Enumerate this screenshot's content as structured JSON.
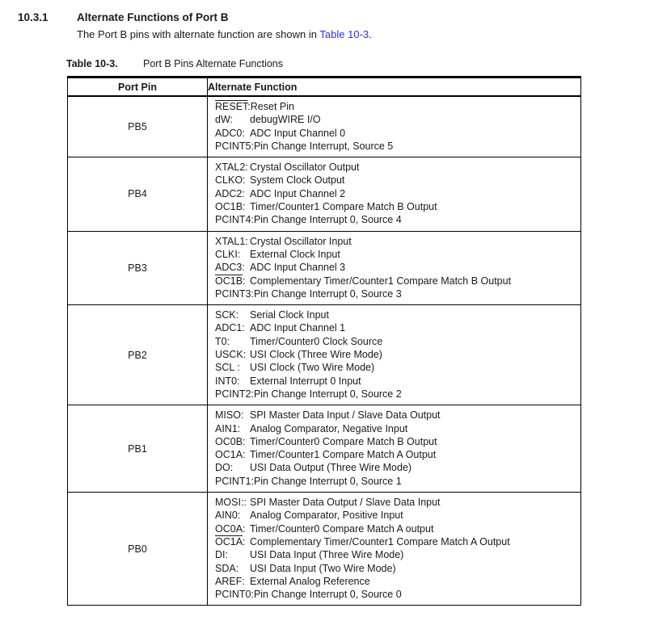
{
  "page": {
    "section_number": "10.3.1",
    "section_title": "Alternate Functions of Port B",
    "intro_text_before_link": "The Port B pins with alternate function are shown in ",
    "intro_link_text": "Table 10-3",
    "intro_text_after_link": ".",
    "link_color": "#2d2df0",
    "text_color": "#1a1a1a",
    "border_color": "#000000"
  },
  "table": {
    "caption_label": "Table 10-3.",
    "caption_title": "Port B Pins Alternate Functions",
    "columns": [
      "Port Pin",
      "Alternate Function"
    ],
    "rows": [
      {
        "pin": "PB5",
        "functions": [
          {
            "sig": "RESET",
            "sep": ":",
            "overline": true,
            "desc": "Reset Pin"
          },
          {
            "sig": "dW",
            "sep": ":",
            "overline": false,
            "desc": "debugWIRE I/O"
          },
          {
            "sig": "ADC0",
            "sep": ":",
            "overline": false,
            "desc": "ADC Input Channel 0"
          },
          {
            "sig": "PCINT5",
            "sep": ":",
            "overline": false,
            "desc": "Pin Change Interrupt, Source 5"
          }
        ]
      },
      {
        "pin": "PB4",
        "functions": [
          {
            "sig": "XTAL2",
            "sep": ":",
            "overline": false,
            "desc": "Crystal Oscillator Output"
          },
          {
            "sig": "CLKO",
            "sep": ":",
            "overline": false,
            "desc": "System Clock Output"
          },
          {
            "sig": "ADC2",
            "sep": ":",
            "overline": false,
            "desc": "ADC Input Channel 2"
          },
          {
            "sig": "OC1B",
            "sep": ":",
            "overline": false,
            "desc": "Timer/Counter1 Compare Match B Output"
          },
          {
            "sig": "PCINT4",
            "sep": ":",
            "overline": false,
            "desc": "Pin Change Interrupt 0, Source 4"
          }
        ]
      },
      {
        "pin": "PB3",
        "functions": [
          {
            "sig": "XTAL1",
            "sep": ":",
            "overline": false,
            "desc": "Crystal Oscillator Input"
          },
          {
            "sig": "CLKI",
            "sep": ":",
            "overline": false,
            "desc": "External Clock Input"
          },
          {
            "sig": "ADC3",
            "sep": ":",
            "overline": false,
            "desc": "ADC Input Channel 3"
          },
          {
            "sig": "OC1B",
            "sep": ":",
            "overline": true,
            "desc": "Complementary Timer/Counter1 Compare Match B Output"
          },
          {
            "sig": "PCINT3",
            "sep": ":",
            "overline": false,
            "desc": "Pin Change Interrupt 0, Source 3"
          }
        ]
      },
      {
        "pin": "PB2",
        "functions": [
          {
            "sig": "SCK",
            "sep": ":",
            "overline": false,
            "desc": "Serial Clock Input"
          },
          {
            "sig": "ADC1",
            "sep": ":",
            "overline": false,
            "desc": "ADC Input Channel 1"
          },
          {
            "sig": "T0",
            "sep": ":",
            "overline": false,
            "desc": "Timer/Counter0 Clock Source"
          },
          {
            "sig": "USCK",
            "sep": ":",
            "overline": false,
            "desc": "USI Clock (Three Wire Mode)"
          },
          {
            "sig": "SCL",
            "sep": " :",
            "overline": false,
            "desc": "USI Clock (Two Wire Mode)"
          },
          {
            "sig": "INT0",
            "sep": ":",
            "overline": false,
            "desc": "External Interrupt 0 Input"
          },
          {
            "sig": "PCINT2",
            "sep": ":",
            "overline": false,
            "desc": "Pin Change Interrupt 0, Source 2"
          }
        ]
      },
      {
        "pin": "PB1",
        "functions": [
          {
            "sig": "MISO",
            "sep": ":",
            "overline": false,
            "desc": "SPI Master Data Input / Slave Data Output"
          },
          {
            "sig": "AIN1",
            "sep": ":",
            "overline": false,
            "desc": "Analog Comparator, Negative Input"
          },
          {
            "sig": "OC0B",
            "sep": ":",
            "overline": false,
            "desc": "Timer/Counter0 Compare Match B Output"
          },
          {
            "sig": "OC1A",
            "sep": ":",
            "overline": false,
            "desc": "Timer/Counter1 Compare Match A Output"
          },
          {
            "sig": "DO",
            "sep": ":",
            "overline": false,
            "desc": "USI Data Output (Three Wire Mode)"
          },
          {
            "sig": "PCINT1",
            "sep": ":",
            "overline": false,
            "desc": "Pin Change Interrupt 0, Source 1"
          }
        ]
      },
      {
        "pin": "PB0",
        "functions": [
          {
            "sig": "MOSI",
            "sep": "::",
            "overline": false,
            "desc": "SPI Master Data Output / Slave Data Input"
          },
          {
            "sig": "AIN0",
            "sep": ":",
            "overline": false,
            "desc": "Analog Comparator, Positive Input"
          },
          {
            "sig": "OC0A",
            "sep": ":",
            "overline": false,
            "desc": "Timer/Counter0 Compare Match A output"
          },
          {
            "sig": "OC1A",
            "sep": ":",
            "overline": true,
            "desc": "Complementary Timer/Counter1 Compare Match A Output"
          },
          {
            "sig": "DI",
            "sep": ":",
            "overline": false,
            "desc": "USI Data Input (Three Wire Mode)"
          },
          {
            "sig": "SDA",
            "sep": ":",
            "overline": false,
            "desc": "USI Data Input (Two Wire Mode)"
          },
          {
            "sig": "AREF",
            "sep": ":",
            "overline": false,
            "desc": "External Analog Reference"
          },
          {
            "sig": "PCINT0",
            "sep": ":",
            "overline": false,
            "desc": "Pin Change Interrupt 0, Source 0"
          }
        ]
      }
    ]
  }
}
